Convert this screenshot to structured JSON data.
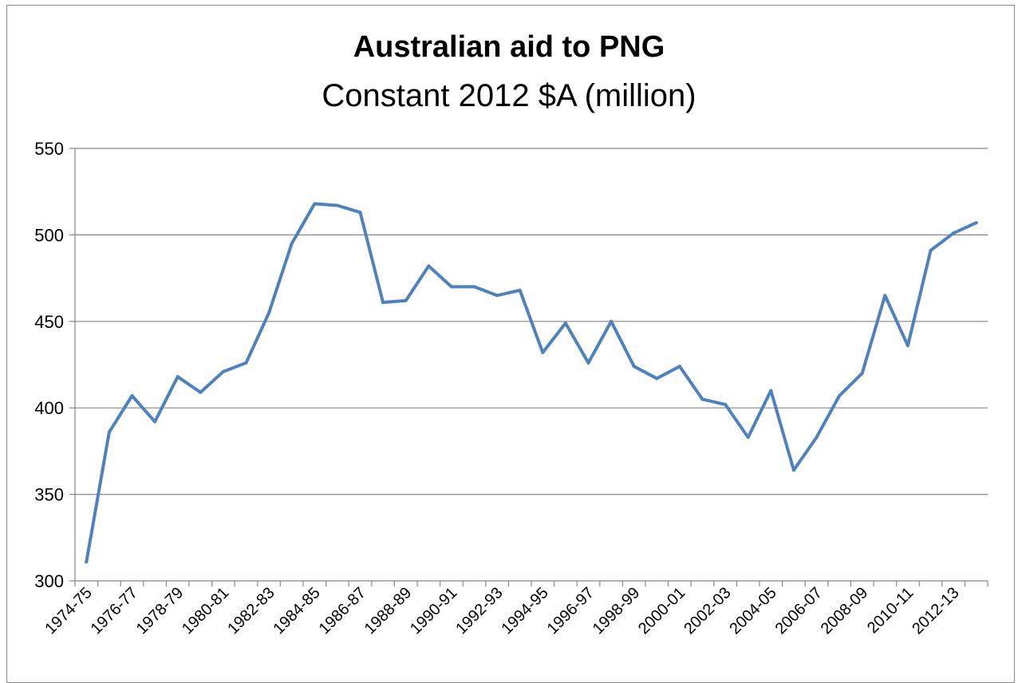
{
  "chart_data": {
    "type": "line",
    "title": "Australian aid to PNG",
    "subtitle": "Constant 2012 $A (million)",
    "xlabel": "",
    "ylabel": "",
    "ylim": [
      300,
      550
    ],
    "yticks": [
      300,
      350,
      400,
      450,
      500,
      550
    ],
    "grid": true,
    "legend": "none",
    "line_color": "#4f81bd",
    "categories": [
      "1974-75",
      "1975-76",
      "1976-77",
      "1977-78",
      "1978-79",
      "1979-80",
      "1980-81",
      "1981-82",
      "1982-83",
      "1983-84",
      "1984-85",
      "1985-86",
      "1986-87",
      "1987-88",
      "1988-89",
      "1989-90",
      "1990-91",
      "1991-92",
      "1992-93",
      "1993-94",
      "1994-95",
      "1995-96",
      "1996-97",
      "1997-98",
      "1998-99",
      "1999-00",
      "2000-01",
      "2001-02",
      "2002-03",
      "2003-04",
      "2004-05",
      "2005-06",
      "2006-07",
      "2007-08",
      "2008-09",
      "2009-10",
      "2010-11",
      "2011-12",
      "2012-13",
      "2013-14"
    ],
    "tick_labels": [
      "1974-75",
      "1976-77",
      "1978-79",
      "1980-81",
      "1982-83",
      "1984-85",
      "1986-87",
      "1988-89",
      "1990-91",
      "1992-93",
      "1994-95",
      "1996-97",
      "1998-99",
      "2000-01",
      "2002-03",
      "2004-05",
      "2006-07",
      "2008-09",
      "2010-11",
      "2012-13"
    ],
    "series": [
      {
        "values": [
          311,
          386,
          407,
          392,
          418,
          409,
          421,
          426,
          455,
          495,
          518,
          517,
          513,
          461,
          462,
          482,
          470,
          470,
          465,
          468,
          432,
          449,
          426,
          450,
          424,
          417,
          424,
          405,
          402,
          383,
          410,
          364,
          383,
          407,
          420,
          465,
          436,
          491,
          501,
          507
        ]
      }
    ]
  }
}
